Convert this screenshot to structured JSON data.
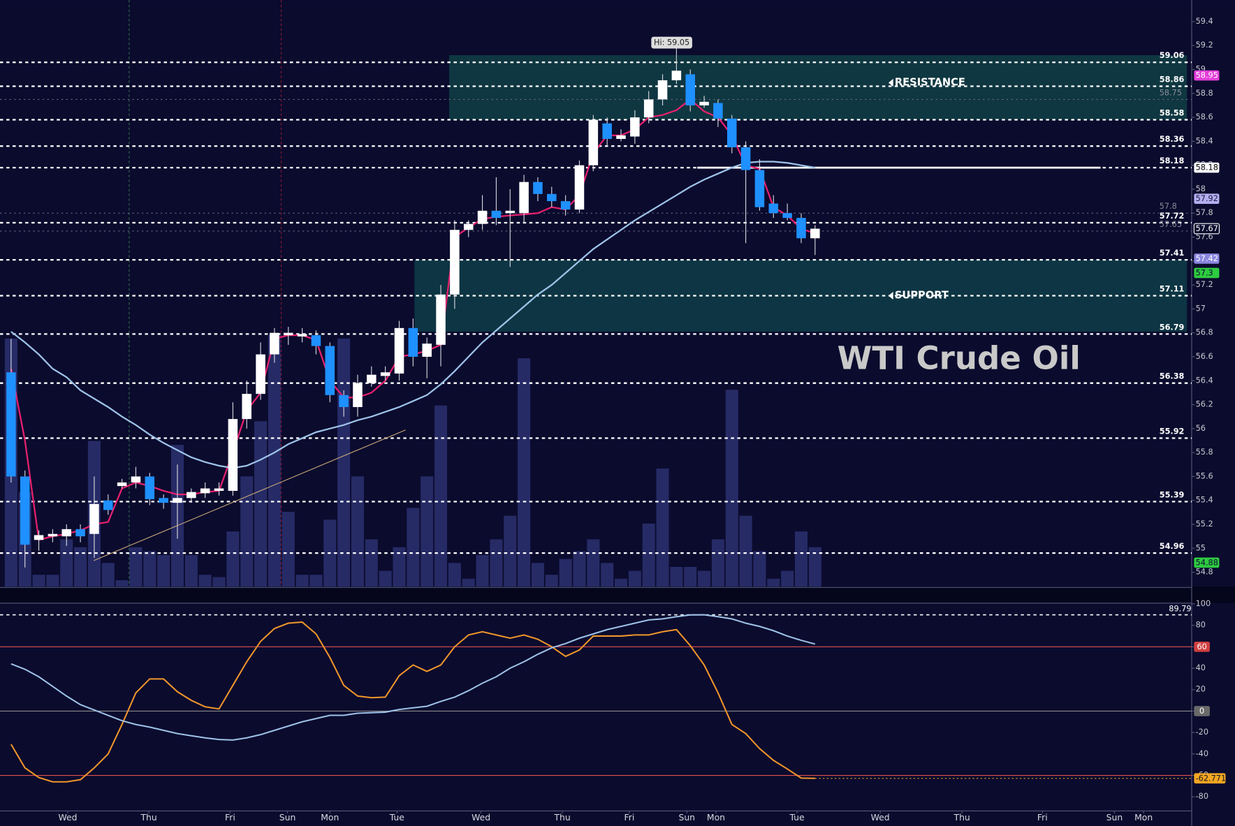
{
  "chart_data": [
    {
      "type": "candlestick",
      "title": "WTI Crude Oil",
      "xlim": [
        -0.8,
        85.17
      ],
      "ylim": [
        54.68,
        59.58
      ],
      "yticks": [
        59.4,
        59.2,
        59,
        58.8,
        58.6,
        58.4,
        58.2,
        58,
        57.8,
        57.6,
        57.4,
        57.2,
        57,
        56.8,
        56.6,
        56.4,
        56.2,
        56,
        55.8,
        55.6,
        55.4,
        55.2,
        55,
        54.8
      ],
      "x": [
        0,
        1,
        2,
        3,
        4,
        5,
        6,
        7,
        8,
        9,
        10,
        11,
        12,
        13,
        14,
        15,
        16,
        17,
        18,
        19,
        20,
        21,
        22,
        23,
        24,
        25,
        26,
        27,
        28,
        29,
        30,
        31,
        32,
        33,
        34,
        35,
        36,
        37,
        38,
        39,
        40,
        41,
        42,
        43,
        44,
        45,
        46,
        47,
        48,
        49,
        50,
        51,
        52,
        53,
        54,
        55,
        56,
        57,
        58
      ],
      "open": [
        56.47,
        55.6,
        55.07,
        55.1,
        55.1,
        55.16,
        55.12,
        55.4,
        55.52,
        55.55,
        55.6,
        55.42,
        55.38,
        55.42,
        55.46,
        55.48,
        55.48,
        56.08,
        56.29,
        56.62,
        56.78,
        56.77,
        56.78,
        56.69,
        56.28,
        56.18,
        56.38,
        56.44,
        56.46,
        56.84,
        56.6,
        56.7,
        57.12,
        57.66,
        57.71,
        57.82,
        57.8,
        57.8,
        58.06,
        57.96,
        57.9,
        57.83,
        58.2,
        58.55,
        58.42,
        58.44,
        58.6,
        58.75,
        58.91,
        58.96,
        58.7,
        58.72,
        58.59,
        58.35,
        58.16,
        57.88,
        57.8,
        57.76,
        57.59
      ],
      "high": [
        56.75,
        55.65,
        55.15,
        55.16,
        55.2,
        55.2,
        55.6,
        55.45,
        55.58,
        55.68,
        55.63,
        55.45,
        55.7,
        55.5,
        55.55,
        55.55,
        56.22,
        56.4,
        56.72,
        56.84,
        56.85,
        56.84,
        56.82,
        56.72,
        56.32,
        56.45,
        56.52,
        56.52,
        56.9,
        56.92,
        56.76,
        57.2,
        57.74,
        57.74,
        57.95,
        58.1,
        58.0,
        58.12,
        58.1,
        58.02,
        57.95,
        58.24,
        58.62,
        58.6,
        58.5,
        58.66,
        58.82,
        58.96,
        59.05,
        59.0,
        58.78,
        58.75,
        58.62,
        58.4,
        58.25,
        57.95,
        57.88,
        57.8,
        57.7
      ],
      "low": [
        55.55,
        54.84,
        54.98,
        55.05,
        55.02,
        55.05,
        54.92,
        55.28,
        55.5,
        55.5,
        55.36,
        55.33,
        55.08,
        55.38,
        55.42,
        55.44,
        55.44,
        56.0,
        56.24,
        56.55,
        56.7,
        56.72,
        56.62,
        56.22,
        56.1,
        56.1,
        56.35,
        56.4,
        56.4,
        56.52,
        56.42,
        56.52,
        57.0,
        57.6,
        57.66,
        57.7,
        57.35,
        57.72,
        57.9,
        57.85,
        57.78,
        57.8,
        58.15,
        58.36,
        58.4,
        58.38,
        58.55,
        58.7,
        58.88,
        58.65,
        58.68,
        58.52,
        58.3,
        57.55,
        57.82,
        57.76,
        57.74,
        57.55,
        57.45
      ],
      "close": [
        55.6,
        55.03,
        55.11,
        55.12,
        55.16,
        55.1,
        55.37,
        55.32,
        55.55,
        55.6,
        55.41,
        55.38,
        55.42,
        55.47,
        55.5,
        55.5,
        56.08,
        56.29,
        56.62,
        56.8,
        56.8,
        56.79,
        56.69,
        56.28,
        56.18,
        56.38,
        56.45,
        56.47,
        56.84,
        56.6,
        56.71,
        57.12,
        57.66,
        57.71,
        57.82,
        57.76,
        57.82,
        58.06,
        57.96,
        57.9,
        57.83,
        58.2,
        58.58,
        58.42,
        58.45,
        58.6,
        58.75,
        58.91,
        58.99,
        58.7,
        58.73,
        58.59,
        58.35,
        58.16,
        57.85,
        57.8,
        57.76,
        57.59,
        57.67
      ],
      "up_color": "#ffffff",
      "down_color": "#1e90ff",
      "volume": [
        315,
        120,
        15,
        15,
        60,
        50,
        185,
        30,
        8,
        50,
        45,
        40,
        180,
        40,
        15,
        12,
        70,
        140,
        210,
        320,
        95,
        15,
        15,
        85,
        315,
        140,
        60,
        20,
        50,
        100,
        140,
        230,
        30,
        10,
        40,
        60,
        90,
        290,
        30,
        15,
        35,
        45,
        60,
        30,
        10,
        20,
        80,
        150,
        25,
        25,
        20,
        60,
        250,
        90,
        45,
        10,
        20,
        70,
        50
      ],
      "volume_lim": [
        0,
        745
      ],
      "volume_color": "#262b66",
      "overlays": [
        {
          "color": "#e8206e",
          "values": [
            56.5,
            55.9,
            55.07,
            55.1,
            55.12,
            55.15,
            55.2,
            55.22,
            55.5,
            55.55,
            55.52,
            55.48,
            55.45,
            55.45,
            55.47,
            55.48,
            55.8,
            56.15,
            56.3,
            56.75,
            56.78,
            56.78,
            56.74,
            56.4,
            56.26,
            56.26,
            56.3,
            56.4,
            56.6,
            56.62,
            56.65,
            56.7,
            57.6,
            57.68,
            57.75,
            57.77,
            57.78,
            57.79,
            57.8,
            57.85,
            57.83,
            57.95,
            58.3,
            58.45,
            58.45,
            58.5,
            58.6,
            58.62,
            58.66,
            58.75,
            58.65,
            58.6,
            58.45,
            58.2,
            58.17,
            57.85,
            57.78,
            57.67,
            57.63
          ]
        },
        {
          "color": "#9ec3e8",
          "values": [
            56.81,
            56.72,
            56.62,
            56.5,
            56.43,
            56.32,
            56.25,
            56.18,
            56.1,
            56.03,
            55.95,
            55.88,
            55.82,
            55.76,
            55.72,
            55.69,
            55.67,
            55.69,
            55.74,
            55.8,
            55.87,
            55.92,
            55.97,
            56.0,
            56.03,
            56.07,
            56.1,
            56.14,
            56.18,
            56.23,
            56.28,
            56.37,
            56.48,
            56.6,
            56.72,
            56.82,
            56.92,
            57.02,
            57.12,
            57.2,
            57.3,
            57.4,
            57.5,
            57.58,
            57.66,
            57.74,
            57.81,
            57.88,
            57.95,
            58.02,
            58.08,
            58.13,
            58.18,
            58.22,
            58.23,
            58.23,
            58.22,
            58.2,
            58.18
          ]
        }
      ],
      "zones": [
        {
          "label": "RESISTANCE",
          "from": 58.58,
          "to": 59.12,
          "x_start": 31.6,
          "color": "#0f3c44"
        },
        {
          "label": "SUPPORT",
          "from": 56.81,
          "to": 57.41,
          "x_start": 29.1,
          "color": "#0d3a46"
        }
      ],
      "levels": [
        {
          "value": 59.06,
          "style": "bold"
        },
        {
          "value": 58.86,
          "style": "bold"
        },
        {
          "value": 58.75,
          "style": "faint"
        },
        {
          "value": 58.58,
          "style": "bold"
        },
        {
          "value": 58.36,
          "style": "bold"
        },
        {
          "value": 58.18,
          "style": "bold",
          "solid_from": 49.5,
          "solid_to": 78.6
        },
        {
          "value": 57.8,
          "style": "faint"
        },
        {
          "value": 57.72,
          "style": "bold"
        },
        {
          "value": 57.65,
          "style": "faint"
        },
        {
          "value": 57.41,
          "style": "bold"
        },
        {
          "value": 57.11,
          "style": "bold"
        },
        {
          "value": 56.79,
          "style": "bold"
        },
        {
          "value": 56.38,
          "style": "bold"
        },
        {
          "value": 55.92,
          "style": "bold"
        },
        {
          "value": 55.39,
          "style": "bold"
        },
        {
          "value": 54.96,
          "style": "bold"
        }
      ],
      "price_badges": [
        {
          "value": 58.95,
          "color": "#e23fd8",
          "text_color": "#ffffff"
        },
        {
          "value": 58.18,
          "color": "#ffffff",
          "text_color": "#000000"
        },
        {
          "value": 57.92,
          "color": "#b4aef0",
          "text_color": "#1a1a40"
        },
        {
          "value": 57.67,
          "color": "#0b0b2e",
          "text_color": "#ffffff"
        },
        {
          "value": 57.42,
          "color": "#8a86e0",
          "text_color": "#ffffff"
        },
        {
          "value": 57.3,
          "color": "#2ecc40",
          "text_color": "#0b0b2e"
        },
        {
          "value": 54.88,
          "color": "#2ecc40",
          "text_color": "#0b0b2e"
        }
      ],
      "hi_label": {
        "value": 59.05,
        "label": "Hi: 59.05",
        "x": 48
      }
    },
    {
      "type": "line",
      "xlim": [
        -0.8,
        85.17
      ],
      "ylim": [
        -93.2,
        100.7
      ],
      "yticks": [
        100,
        80,
        60,
        40,
        20,
        0,
        -20,
        -40,
        -60,
        -80
      ],
      "xticks": [
        {
          "value": 4.09,
          "label": "Wed"
        },
        {
          "value": 9.94,
          "label": "Thu"
        },
        {
          "value": 15.8,
          "label": "Fri"
        },
        {
          "value": 19.94,
          "label": "Sun"
        },
        {
          "value": 23.0,
          "label": "Mon"
        },
        {
          "value": 27.84,
          "label": "Tue"
        },
        {
          "value": 33.9,
          "label": "Wed"
        },
        {
          "value": 39.77,
          "label": "Thu"
        },
        {
          "value": 44.6,
          "label": "Fri"
        },
        {
          "value": 48.75,
          "label": "Sun"
        },
        {
          "value": 50.85,
          "label": "Mon"
        },
        {
          "value": 56.7,
          "label": "Tue"
        },
        {
          "value": 62.7,
          "label": "Wed"
        },
        {
          "value": 68.6,
          "label": "Thu"
        },
        {
          "value": 74.4,
          "label": "Fri"
        },
        {
          "value": 79.6,
          "label": "Sun"
        },
        {
          "value": 81.7,
          "label": "Mon"
        }
      ],
      "series": [
        {
          "color": "#f0962a",
          "badge": "#f5a623",
          "values": [
            -31,
            -53,
            -62,
            -66,
            -66,
            -64,
            -53,
            -40,
            -12.5,
            17,
            30,
            30,
            18,
            10,
            4,
            2,
            24,
            46,
            65,
            77,
            82,
            83,
            72,
            50,
            24,
            14,
            12.5,
            13,
            33,
            43,
            37,
            43,
            60,
            71,
            74,
            71,
            68,
            71,
            67,
            60,
            51,
            57,
            70,
            70,
            70,
            71,
            71,
            74,
            76,
            61,
            43,
            17,
            -12.5,
            -21,
            -35,
            -46,
            -54,
            -62.5,
            -62.771
          ]
        },
        {
          "color": "#9ec3e8",
          "values": [
            44,
            39,
            32,
            23,
            14,
            6,
            1,
            -4,
            -9,
            -12.5,
            -15,
            -18,
            -21,
            -23,
            -25,
            -26.5,
            -27,
            -25,
            -22,
            -18,
            -14,
            -10,
            -7,
            -4,
            -4,
            -2,
            -1.5,
            -1,
            1.5,
            3,
            4.5,
            9,
            13,
            19,
            26,
            32,
            40,
            46,
            53,
            59,
            63,
            68,
            72,
            76,
            79,
            82,
            85,
            86,
            88,
            89.7,
            89.79,
            88,
            86,
            82,
            79,
            75,
            70,
            66,
            62.5
          ]
        }
      ],
      "levels": [
        {
          "value": 89.79,
          "color": "#ffffff",
          "dash": true
        },
        {
          "value": 60,
          "color": "#e05050",
          "badge": "#d04040"
        },
        {
          "value": 0,
          "color": "#8a8a8a",
          "badge": "#6a6a6a"
        },
        {
          "value": -60,
          "color": "#e05050"
        }
      ]
    }
  ]
}
